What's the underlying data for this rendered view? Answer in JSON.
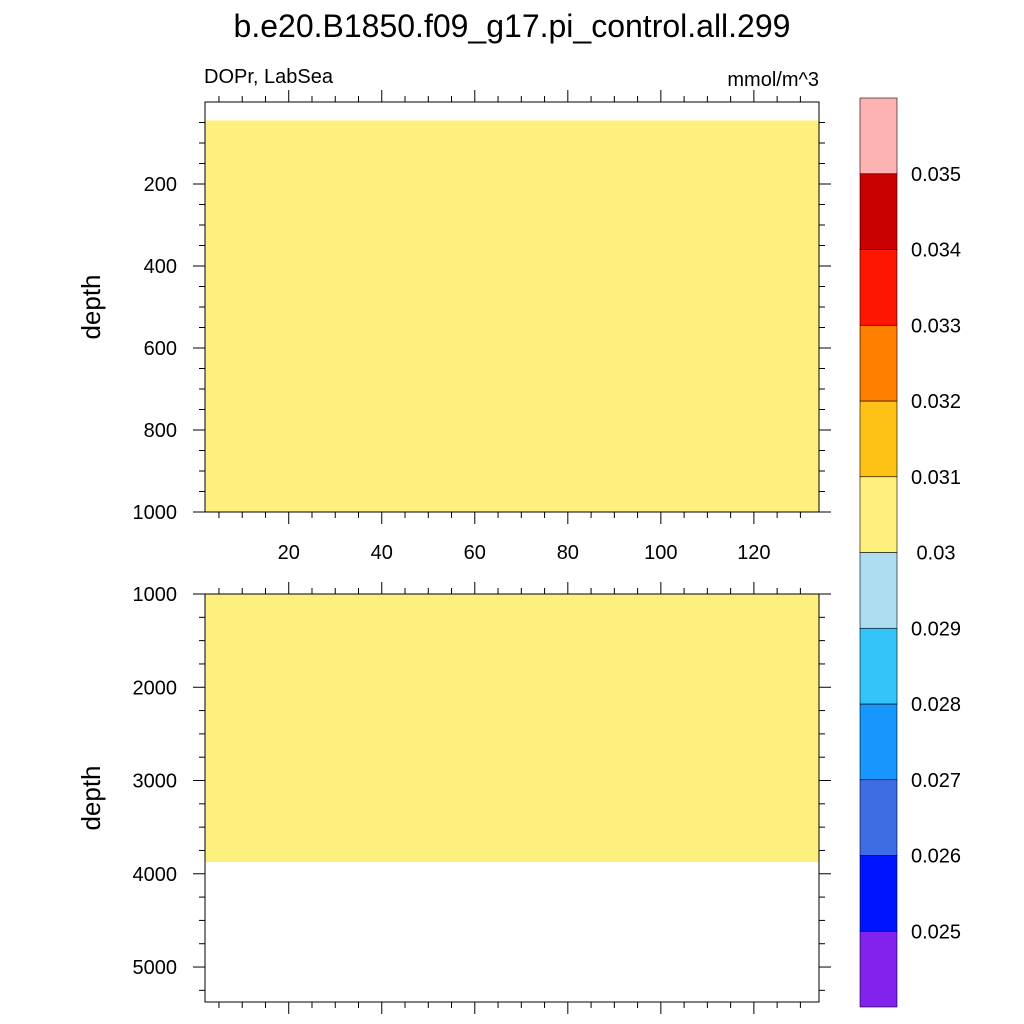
{
  "chart_data": {
    "type": "heatmap",
    "title": "b.e20.B1850.f09_g17.pi_control.all.299",
    "subtitle_left": "DOPr, LabSea",
    "subtitle_right": "mmol/m^3",
    "shared_x": {
      "range": [
        2,
        134
      ],
      "ticks": [
        20,
        40,
        60,
        80,
        100,
        120
      ],
      "tick_labels": [
        "20",
        "40",
        "60",
        "80",
        "100",
        "120"
      ],
      "minor_step": 5
    },
    "panels": [
      {
        "id": "upper",
        "ylabel": "depth",
        "ylim": [
          0,
          1000
        ],
        "y_reversed": true,
        "y_visible_top": 45,
        "yticks": [
          200,
          400,
          600,
          800,
          1000
        ],
        "ytick_labels": [
          "200",
          "400",
          "600",
          "800",
          "1000"
        ],
        "y_minor_step": 50,
        "show_x_tick_labels": true,
        "fill": {
          "color": "#fef07e",
          "depth_from": 45,
          "depth_to": 1000,
          "value_range": [
            0.03,
            0.031
          ]
        }
      },
      {
        "id": "lower",
        "ylabel": "depth",
        "ylim": [
          1000,
          5375
        ],
        "y_reversed": true,
        "y_visible_top": 1000,
        "yticks": [
          1000,
          2000,
          3000,
          4000,
          5000
        ],
        "ytick_labels": [
          "1000",
          "2000",
          "3000",
          "4000",
          "5000"
        ],
        "y_minor_step": 250,
        "show_x_tick_labels": false,
        "fill": {
          "color": "#fef07e",
          "depth_from": 1000,
          "depth_to": 3875,
          "value_range": [
            0.03,
            0.031
          ]
        }
      }
    ],
    "colorbar": {
      "colors": [
        "#8122ee",
        "#0014ff",
        "#3d6ce5",
        "#1797fe",
        "#35c4f9",
        "#aedcf0",
        "#fef07e",
        "#fec216",
        "#fe7f00",
        "#fe1600",
        "#cb0000",
        "#feb3b3"
      ],
      "labels": [
        "0.025",
        "0.026",
        "0.027",
        "0.028",
        "0.029",
        "0.03",
        "0.031",
        "0.032",
        "0.033",
        "0.034",
        "0.035"
      ]
    }
  }
}
